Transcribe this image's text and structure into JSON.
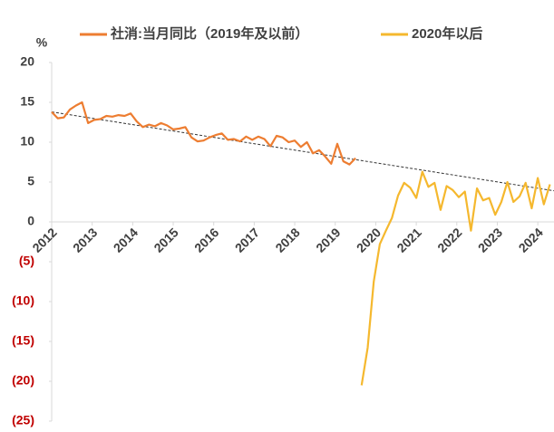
{
  "chart_data": {
    "type": "line",
    "y_unit": "%",
    "xlim": [
      2012,
      2024.4
    ],
    "xticks": [
      2012,
      2013,
      2014,
      2015,
      2016,
      2017,
      2018,
      2019,
      2020,
      2021,
      2022,
      2023,
      2024
    ],
    "ylim": [
      -25,
      20
    ],
    "yticks": [
      20,
      15,
      10,
      5,
      0,
      {
        "value": -5,
        "label": "(5)"
      },
      {
        "value": -10,
        "label": "(10)"
      },
      {
        "value": -15,
        "label": "(15)"
      },
      {
        "value": -20,
        "label": "(20)"
      },
      {
        "value": -25,
        "label": "(25)"
      }
    ],
    "negative_label_color": "#C00000",
    "grid": false,
    "legend": "top",
    "series": [
      {
        "name": "社消:当月同比（2019年及以前）",
        "color": "#ED7D31",
        "x": [
          2012,
          2012.15,
          2012.3,
          2012.45,
          2012.6,
          2012.75,
          2012.9,
          2013.05,
          2013.2,
          2013.35,
          2013.5,
          2013.65,
          2013.8,
          2013.95,
          2014.1,
          2014.25,
          2014.4,
          2014.55,
          2014.7,
          2014.85,
          2015,
          2015.15,
          2015.3,
          2015.45,
          2015.6,
          2015.75,
          2015.9,
          2016.05,
          2016.2,
          2016.35,
          2016.5,
          2016.65,
          2016.8,
          2016.95,
          2017.1,
          2017.25,
          2017.4,
          2017.55,
          2017.7,
          2017.85,
          2018,
          2018.15,
          2018.3,
          2018.45,
          2018.6,
          2018.75,
          2018.9,
          2019.05,
          2019.2,
          2019.35,
          2019.5
        ],
        "values": [
          13.8,
          13.0,
          13.1,
          14.1,
          14.6,
          15.0,
          12.4,
          12.8,
          12.9,
          13.3,
          13.2,
          13.4,
          13.3,
          13.6,
          12.6,
          11.9,
          12.2,
          12.0,
          12.4,
          12.1,
          11.6,
          11.7,
          11.9,
          10.6,
          10.1,
          10.2,
          10.6,
          10.9,
          11.1,
          10.3,
          10.4,
          10.1,
          10.7,
          10.3,
          10.7,
          10.4,
          9.5,
          10.8,
          10.6,
          10.0,
          10.2,
          9.4,
          10.0,
          8.6,
          9.0,
          8.2,
          7.3,
          9.8,
          7.6,
          7.2,
          8.0
        ]
      },
      {
        "name": "2020年以后",
        "color": "#F5B82E",
        "x": [
          2019.65,
          2019.8,
          2019.95,
          2020.1,
          2020.25,
          2020.4,
          2020.55,
          2020.7,
          2020.85,
          2021,
          2021.15,
          2021.3,
          2021.45,
          2021.6,
          2021.75,
          2021.9,
          2022.05,
          2022.2,
          2022.35,
          2022.5,
          2022.65,
          2022.8,
          2022.95,
          2023.1,
          2023.25,
          2023.4,
          2023.55,
          2023.7,
          2023.85,
          2024,
          2024.15,
          2024.3
        ],
        "values": [
          -20.5,
          -15.8,
          -7.5,
          -2.8,
          -1.1,
          0.5,
          3.3,
          4.9,
          4.3,
          3.0,
          6.3,
          4.4,
          4.9,
          1.5,
          4.5,
          4.0,
          3.1,
          3.8,
          -1.1,
          4.2,
          2.7,
          3.0,
          0.9,
          2.5,
          5.0,
          2.5,
          3.2,
          4.9,
          1.7,
          5.5,
          2.2,
          4.7
        ]
      }
    ],
    "trendline": {
      "color": "#333333",
      "x": [
        2012,
        2024.4
      ],
      "values": [
        13.8,
        3.9
      ]
    }
  }
}
